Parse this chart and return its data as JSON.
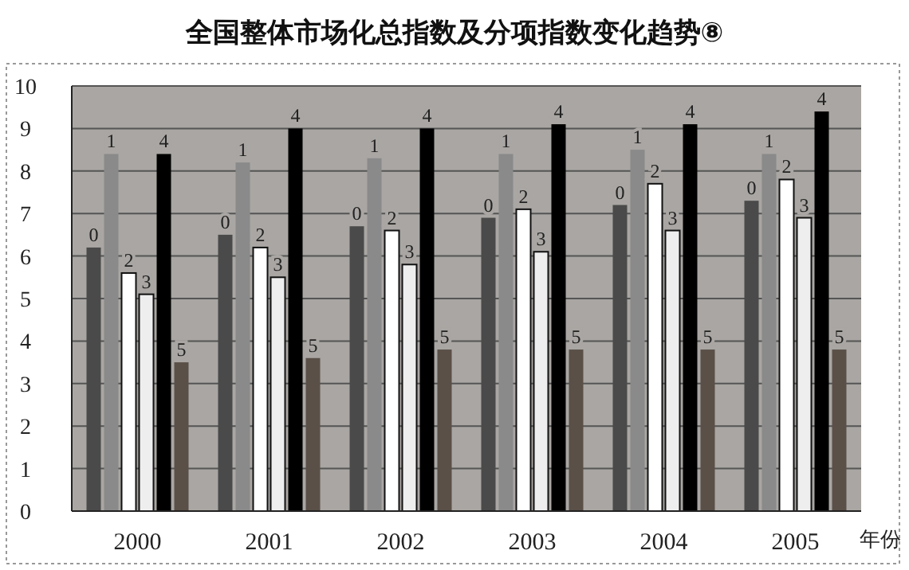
{
  "chart_data": {
    "type": "bar",
    "title": "全国整体市场化总指数及分项指数变化趋势⑧",
    "xlabel": "年份",
    "categories": [
      "2000",
      "2001",
      "2002",
      "2003",
      "2004",
      "2005"
    ],
    "series": [
      {
        "name": "0",
        "color": "#4a4a4a",
        "values": [
          6.2,
          6.5,
          6.7,
          6.9,
          7.2,
          7.3
        ]
      },
      {
        "name": "1",
        "color": "#8a8a8a",
        "values": [
          8.4,
          8.2,
          8.3,
          8.4,
          8.5,
          8.4
        ]
      },
      {
        "name": "2",
        "color": "#ffffff",
        "values": [
          5.6,
          6.2,
          6.6,
          7.1,
          7.7,
          7.8
        ]
      },
      {
        "name": "3",
        "color": "#eeeeee",
        "values": [
          5.1,
          5.5,
          5.8,
          6.1,
          6.6,
          6.9
        ]
      },
      {
        "name": "4",
        "color": "#000000",
        "values": [
          8.4,
          9.0,
          9.0,
          9.1,
          9.1,
          9.4
        ]
      },
      {
        "name": "5",
        "color": "#5a5048",
        "values": [
          3.5,
          3.6,
          3.8,
          3.8,
          3.8,
          3.8
        ]
      }
    ],
    "ylim": [
      0,
      10
    ],
    "yticks": [
      0,
      1,
      2,
      3,
      4,
      5,
      6,
      7,
      8,
      9,
      10
    ],
    "grid": "y"
  }
}
